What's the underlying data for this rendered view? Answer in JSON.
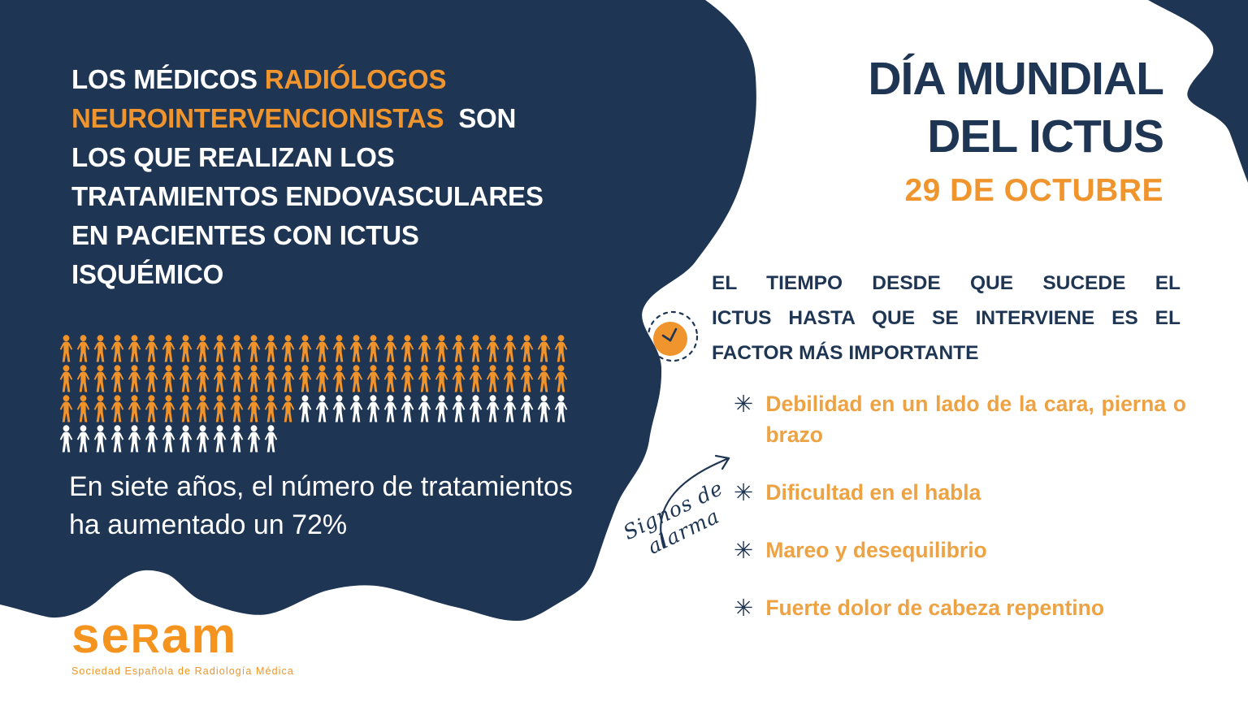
{
  "colors": {
    "navy": "#1E3553",
    "orange": "#F0952E",
    "orangeLight": "#EDA243",
    "logoOrange": "#F4941F"
  },
  "left_panel": {
    "headline_lines": [
      {
        "parts": [
          {
            "text": "LOS MÉDICOS ",
            "color": "white"
          },
          {
            "text": "RADIÓLOGOS",
            "color": "orange"
          }
        ]
      },
      {
        "parts": [
          {
            "text": "NEUROINTERVENCIONISTAS",
            "color": "orange"
          },
          {
            "text": "  SON",
            "color": "white"
          }
        ]
      },
      {
        "parts": [
          {
            "text": "LOS QUE REALIZAN LOS",
            "color": "white"
          }
        ]
      },
      {
        "parts": [
          {
            "text": "TRATAMIENTOS ENDOVASCULARES",
            "color": "white"
          }
        ]
      },
      {
        "parts": [
          {
            "text": "EN PACIENTES CON ICTUS",
            "color": "white"
          }
        ]
      },
      {
        "parts": [
          {
            "text": "ISQUÉMICO",
            "color": "white"
          }
        ]
      }
    ],
    "pictogram": {
      "description": "Rows of person icons showing growth of endovascular treatments",
      "rows": [
        {
          "orange": 30,
          "white": 0
        },
        {
          "orange": 30,
          "white": 0
        },
        {
          "orange": 14,
          "white": 16
        },
        {
          "orange": 0,
          "white": 13
        }
      ],
      "orange_color": "#F0932B",
      "white_color": "#FFFFFF"
    },
    "caption": "En siete años, el número de tratamientos ha aumentado un 72%",
    "stat": "72%",
    "logo": {
      "part1": "se",
      "part2": "R",
      "part3": "am",
      "tagline": "Sociedad Española de Radiología Médica"
    }
  },
  "right_panel": {
    "title_line1": "DÍA MUNDIAL",
    "title_line2": "DEL ICTUS",
    "date": "29 DE OCTUBRE",
    "time_lines": [
      "EL TIEMPO DESDE QUE SUCEDE EL",
      "ICTUS HASTA QUE SE INTERVIENE ES EL",
      "FACTOR MÁS IMPORTANTE"
    ],
    "alarm_label": "Signos de alarma",
    "bullet_glyph": "✳",
    "warning_signs": [
      "Debilidad en un lado de la cara, pierna o brazo",
      "Dificultad en el habla",
      "Mareo y desequilibrio",
      "Fuerte dolor de cabeza repentino"
    ]
  },
  "icons": {
    "clock": "clock-with-rotation-arrow-icon",
    "alarm_arrow": "curved-arrow-icon",
    "bullet": "asterisk-bullet-icon",
    "person": "person-icon"
  }
}
